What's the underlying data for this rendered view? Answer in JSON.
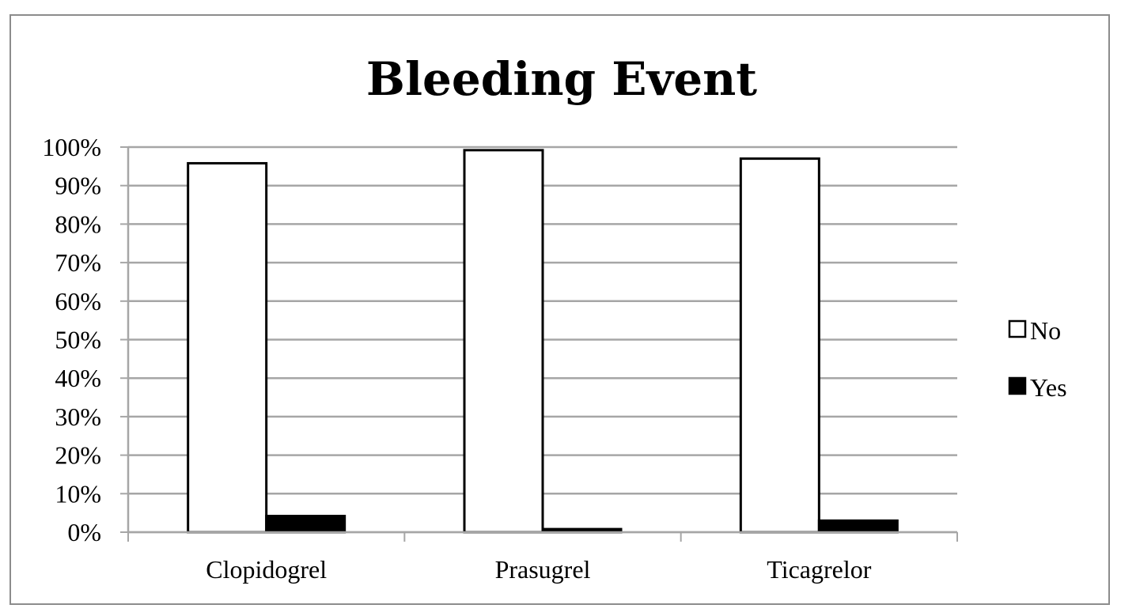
{
  "chart_data": {
    "type": "bar",
    "title": "Bleeding Event",
    "xlabel": "",
    "ylabel": "",
    "categories": [
      "Clopidogrel",
      "Prasugrel",
      "Ticagrelor"
    ],
    "series": [
      {
        "name": "No",
        "values": [
          95.8,
          99.2,
          97.0
        ]
      },
      {
        "name": "Yes",
        "values": [
          4.2,
          0.8,
          3.0
        ]
      }
    ],
    "ylim": [
      0,
      100
    ],
    "yticks": [
      "0%",
      "10%",
      "20%",
      "30%",
      "40%",
      "50%",
      "60%",
      "70%",
      "80%",
      "90%",
      "100%"
    ],
    "grid": true,
    "legend_position": "right"
  },
  "colors": {
    "No": "#ffffff",
    "Yes": "#000000",
    "bar_stroke": "#000000",
    "grid": "#a6a6a6",
    "axis": "#a6a6a6"
  }
}
